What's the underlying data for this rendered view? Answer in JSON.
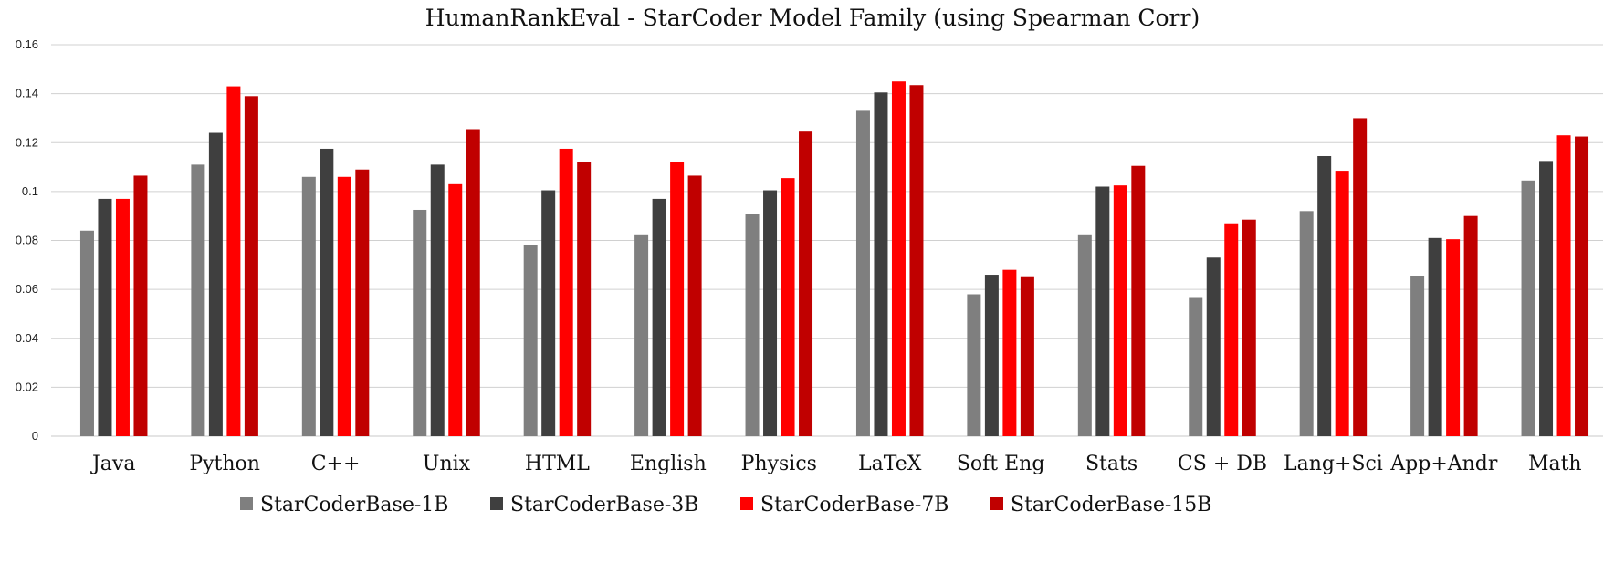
{
  "chart_data": {
    "type": "bar",
    "title": "HumanRankEval - StarCoder Model Family (using Spearman Corr)",
    "xlabel": "",
    "ylabel": "",
    "ylim": [
      0,
      0.16
    ],
    "yticks": [
      0,
      0.02,
      0.04,
      0.06,
      0.08,
      0.1,
      0.12,
      0.14,
      0.16
    ],
    "ytick_labels": [
      "0",
      "0.02",
      "0.04",
      "0.06",
      "0.08",
      "0.1",
      "0.12",
      "0.14",
      "0.16"
    ],
    "grid": true,
    "legend_position": "bottom",
    "categories": [
      "Java",
      "Python",
      "C++",
      "Unix",
      "HTML",
      "English",
      "Physics",
      "LaTeX",
      "Soft Eng",
      "Stats",
      "CS + DB",
      "Lang+Sci",
      "App+Andr",
      "Math"
    ],
    "series": [
      {
        "name": "StarCoderBase-1B",
        "color": "#7f7f7f",
        "values": [
          0.084,
          0.111,
          0.106,
          0.0925,
          0.078,
          0.0825,
          0.091,
          0.133,
          0.058,
          0.0825,
          0.0565,
          0.092,
          0.0655,
          0.1045
        ]
      },
      {
        "name": "StarCoderBase-3B",
        "color": "#3f3f3f",
        "values": [
          0.097,
          0.124,
          0.1175,
          0.111,
          0.1005,
          0.097,
          0.1005,
          0.1405,
          0.066,
          0.102,
          0.073,
          0.1145,
          0.081,
          0.1125
        ]
      },
      {
        "name": "StarCoderBase-7B",
        "color": "#ff0000",
        "values": [
          0.097,
          0.143,
          0.106,
          0.103,
          0.1175,
          0.112,
          0.1055,
          0.145,
          0.068,
          0.1025,
          0.087,
          0.1085,
          0.0805,
          0.123
        ]
      },
      {
        "name": "StarCoderBase-15B",
        "color": "#c00000",
        "values": [
          0.1065,
          0.139,
          0.109,
          0.1255,
          0.112,
          0.1065,
          0.1245,
          0.1435,
          0.065,
          0.1105,
          0.0885,
          0.13,
          0.09,
          0.1225
        ]
      }
    ]
  }
}
